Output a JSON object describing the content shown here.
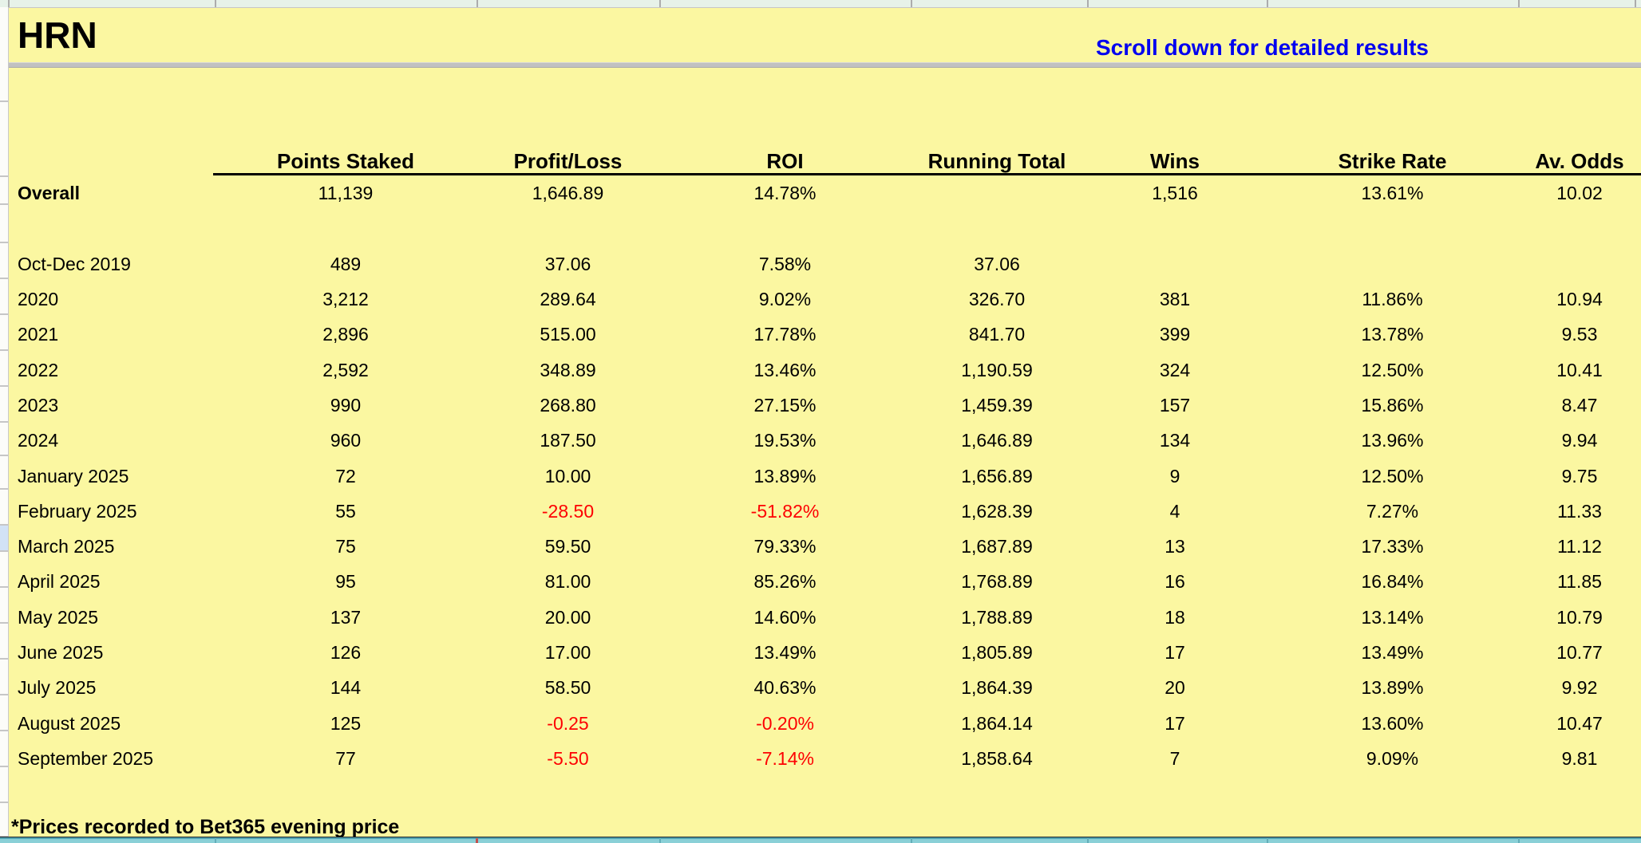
{
  "sheet": {
    "title": "HRN",
    "scroll_note": "Scroll down for detailed results",
    "footer_note": "*Prices recorded to Bet365 evening price"
  },
  "table": {
    "columns": [
      "Points Staked",
      "Profit/Loss",
      "ROI",
      "Running Total",
      "Wins",
      "Strike Rate",
      "Av. Odds"
    ],
    "rows": [
      {
        "label": "Overall",
        "bold": true,
        "values": [
          "11,139",
          "1,646.89",
          "14.78%",
          "",
          "1,516",
          "13.61%",
          "10.02"
        ]
      },
      {
        "label": "",
        "values": [
          "",
          "",
          "",
          "",
          "",
          "",
          ""
        ]
      },
      {
        "label": "Oct-Dec 2019",
        "values": [
          "489",
          "37.06",
          "7.58%",
          "37.06",
          "",
          "",
          ""
        ]
      },
      {
        "label": "2020",
        "values": [
          "3,212",
          "289.64",
          "9.02%",
          "326.70",
          "381",
          "11.86%",
          "10.94"
        ]
      },
      {
        "label": "2021",
        "values": [
          "2,896",
          "515.00",
          "17.78%",
          "841.70",
          "399",
          "13.78%",
          "9.53"
        ]
      },
      {
        "label": "2022",
        "values": [
          "2,592",
          "348.89",
          "13.46%",
          "1,190.59",
          "324",
          "12.50%",
          "10.41"
        ]
      },
      {
        "label": "2023",
        "values": [
          "990",
          "268.80",
          "27.15%",
          "1,459.39",
          "157",
          "15.86%",
          "8.47"
        ]
      },
      {
        "label": "2024",
        "values": [
          "960",
          "187.50",
          "19.53%",
          "1,646.89",
          "134",
          "13.96%",
          "9.94"
        ]
      },
      {
        "label": "January 2025",
        "values": [
          "72",
          "10.00",
          "13.89%",
          "1,656.89",
          "9",
          "12.50%",
          "9.75"
        ]
      },
      {
        "label": "February 2025",
        "values": [
          "55",
          "-28.50",
          "-51.82%",
          "1,628.39",
          "4",
          "7.27%",
          "11.33"
        ]
      },
      {
        "label": "March 2025",
        "values": [
          "75",
          "59.50",
          "79.33%",
          "1,687.89",
          "13",
          "17.33%",
          "11.12"
        ]
      },
      {
        "label": "April 2025",
        "values": [
          "95",
          "81.00",
          "85.26%",
          "1,768.89",
          "16",
          "16.84%",
          "11.85"
        ]
      },
      {
        "label": "May 2025",
        "values": [
          "137",
          "20.00",
          "14.60%",
          "1,788.89",
          "18",
          "13.14%",
          "10.79"
        ]
      },
      {
        "label": "June 2025",
        "values": [
          "126",
          "17.00",
          "13.49%",
          "1,805.89",
          "17",
          "13.49%",
          "10.77"
        ]
      },
      {
        "label": "July 2025",
        "values": [
          "144",
          "58.50",
          "40.63%",
          "1,864.39",
          "20",
          "13.89%",
          "9.92"
        ]
      },
      {
        "label": "August 2025",
        "values": [
          "125",
          "-0.25",
          "-0.20%",
          "1,864.14",
          "17",
          "13.60%",
          "10.47"
        ]
      },
      {
        "label": "September 2025",
        "values": [
          "77",
          "-5.50",
          "-7.14%",
          "1,858.64",
          "7",
          "9.09%",
          "9.81"
        ]
      }
    ]
  },
  "colors": {
    "sheet_yellow": "#fbf7a1",
    "note_blue": "#0202ef",
    "negative_red": "#fd0002",
    "selection_blue": "#d2e2f6",
    "bottom_strip_teal": "#8ad0d7"
  }
}
